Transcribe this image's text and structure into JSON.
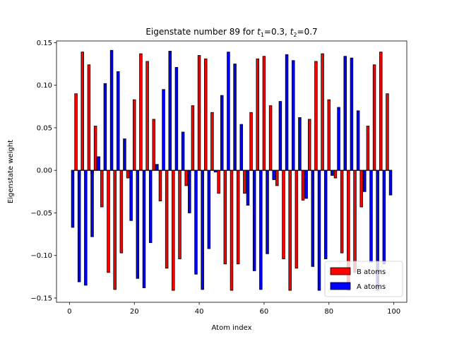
{
  "chart_data": {
    "type": "bar",
    "title_main": "Eigenstate number 89 for ",
    "title_t1_var": "t",
    "title_t1_sub": "1",
    "title_t1_val": "=0.3, ",
    "title_t2_var": "t",
    "title_t2_sub": "2",
    "title_t2_val": "=0.7",
    "xlabel": "Atom index",
    "ylabel": "Eigenstate weight",
    "xlim": [
      -4,
      104
    ],
    "ylim": [
      -0.155,
      0.152
    ],
    "xticks": [
      0,
      20,
      40,
      60,
      80,
      100
    ],
    "yticks": [
      -0.15,
      -0.1,
      -0.05,
      0.0,
      0.05,
      0.1,
      0.15
    ],
    "ytick_labels": [
      "−0.15",
      "−0.10",
      "−0.05",
      "0.00",
      "0.05",
      "0.10",
      "0.15"
    ],
    "grid": false,
    "legend_position": "lower-right",
    "series": [
      {
        "name": "B atoms",
        "color": "#ff0000",
        "values": [
          [
            2,
            0.09
          ],
          [
            3,
            -0.01
          ],
          [
            4,
            0.139
          ],
          [
            5,
            -0.002
          ],
          [
            6,
            0.124
          ],
          [
            7,
            -0.004
          ],
          [
            8,
            0.052
          ],
          [
            10,
            -0.043
          ],
          [
            12,
            -0.12
          ],
          [
            14,
            -0.14
          ],
          [
            16,
            -0.097
          ],
          [
            18,
            -0.009
          ],
          [
            20,
            0.083
          ],
          [
            22,
            0.137
          ],
          [
            24,
            0.128
          ],
          [
            26,
            0.06
          ],
          [
            28,
            -0.036
          ],
          [
            30,
            -0.115
          ],
          [
            32,
            -0.141
          ],
          [
            34,
            -0.104
          ],
          [
            36,
            -0.018
          ],
          [
            38,
            0.076
          ],
          [
            40,
            0.135
          ],
          [
            42,
            0.131
          ],
          [
            44,
            0.068
          ],
          [
            46,
            -0.027
          ],
          [
            48,
            -0.11
          ],
          [
            50,
            -0.141
          ],
          [
            52,
            -0.11
          ],
          [
            54,
            -0.027
          ],
          [
            56,
            0.068
          ],
          [
            58,
            0.131
          ],
          [
            60,
            0.134
          ],
          [
            62,
            0.076
          ],
          [
            64,
            -0.018
          ],
          [
            66,
            -0.104
          ],
          [
            68,
            -0.141
          ],
          [
            70,
            -0.115
          ],
          [
            72,
            -0.035
          ],
          [
            74,
            0.06
          ],
          [
            76,
            0.128
          ],
          [
            78,
            0.137
          ],
          [
            80,
            0.083
          ],
          [
            82,
            -0.009
          ],
          [
            84,
            -0.097
          ],
          [
            86,
            -0.141
          ],
          [
            88,
            -0.12
          ],
          [
            90,
            -0.043
          ],
          [
            92,
            0.052
          ],
          [
            94,
            0.124
          ],
          [
            96,
            0.139
          ],
          [
            98,
            0.09
          ]
        ]
      },
      {
        "name": "A atoms",
        "color": "#0000ff",
        "values": [
          [
            1,
            -0.067
          ],
          [
            3,
            -0.131
          ],
          [
            5,
            -0.135
          ],
          [
            7,
            -0.078
          ],
          [
            9,
            0.016
          ],
          [
            11,
            0.102
          ],
          [
            13,
            0.141
          ],
          [
            15,
            0.116
          ],
          [
            17,
            0.037
          ],
          [
            19,
            -0.059
          ],
          [
            21,
            -0.127
          ],
          [
            23,
            -0.138
          ],
          [
            25,
            -0.085
          ],
          [
            27,
            0.007
          ],
          [
            29,
            0.095
          ],
          [
            31,
            0.14
          ],
          [
            33,
            0.121
          ],
          [
            35,
            0.045
          ],
          [
            37,
            -0.05
          ],
          [
            39,
            -0.122
          ],
          [
            41,
            -0.14
          ],
          [
            43,
            -0.092
          ],
          [
            45,
            -0.002
          ],
          [
            47,
            0.088
          ],
          [
            49,
            0.139
          ],
          [
            51,
            0.125
          ],
          [
            53,
            0.054
          ],
          [
            55,
            -0.041
          ],
          [
            57,
            -0.118
          ],
          [
            59,
            -0.14
          ],
          [
            61,
            -0.098
          ],
          [
            63,
            -0.011
          ],
          [
            65,
            0.081
          ],
          [
            67,
            0.136
          ],
          [
            69,
            0.129
          ],
          [
            71,
            0.062
          ],
          [
            73,
            -0.033
          ],
          [
            75,
            -0.113
          ],
          [
            77,
            -0.141
          ],
          [
            79,
            -0.104
          ],
          [
            81,
            -0.006
          ],
          [
            83,
            0.074
          ],
          [
            85,
            0.134
          ],
          [
            87,
            0.132
          ],
          [
            89,
            0.07
          ],
          [
            91,
            -0.025
          ],
          [
            93,
            -0.108
          ],
          [
            95,
            -0.141
          ],
          [
            97,
            -0.11
          ],
          [
            99,
            -0.029
          ]
        ]
      }
    ]
  }
}
